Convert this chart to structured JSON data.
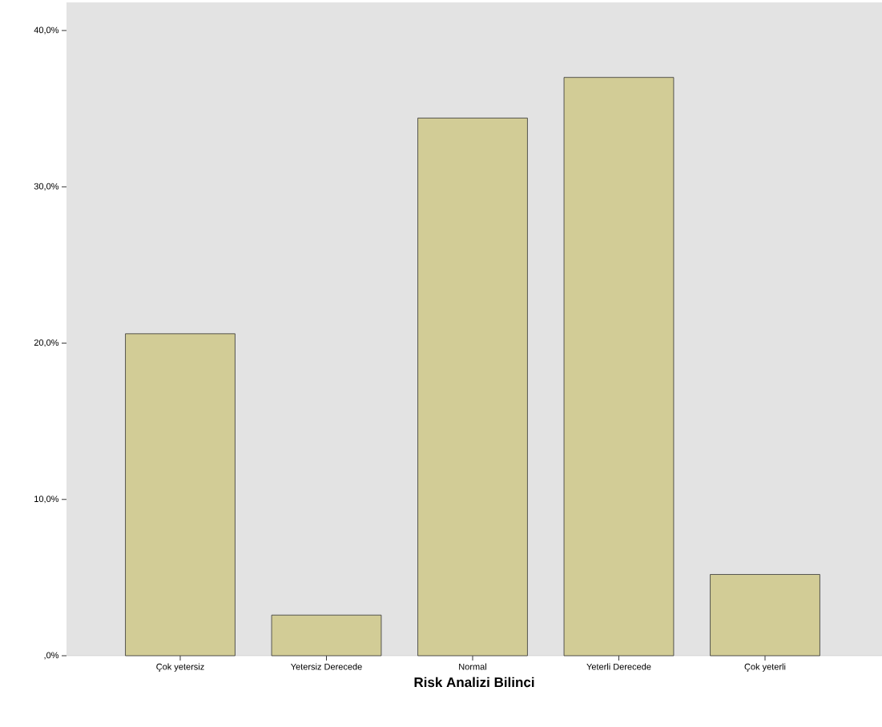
{
  "chart_data": {
    "type": "bar",
    "xlabel": "Risk Analizi Bilinci",
    "categories": [
      "Çok yetersiz",
      "Yetersiz Derecede",
      "Normal",
      "Yeterli Derecede",
      "Çok yeterli"
    ],
    "values": [
      20.6,
      2.6,
      34.4,
      37.0,
      5.2
    ],
    "color": "#d2cc96",
    "ylim": [
      0,
      41.8
    ],
    "yticks": [
      {
        "value": 0,
        "label": ",0%"
      },
      {
        "value": 10,
        "label": "10,0%"
      },
      {
        "value": 20,
        "label": "20,0%"
      },
      {
        "value": 30,
        "label": "30,0%"
      },
      {
        "value": 40,
        "label": "40,0%"
      }
    ]
  }
}
